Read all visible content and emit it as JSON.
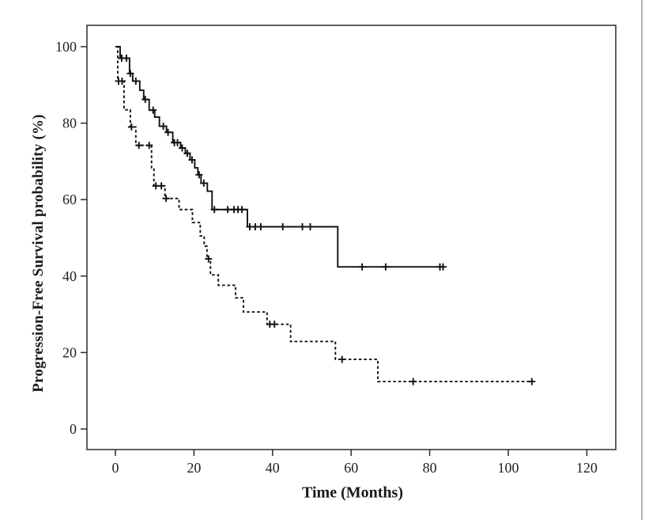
{
  "figure": {
    "background": "#ffffff",
    "line_color": "#111111",
    "axis_color": "#2b2b2b",
    "edge_line_color": "#b3b3b3"
  },
  "chart_data": {
    "type": "line",
    "subtype": "kaplan-meier-step",
    "title": "",
    "xlabel": "Time (Months)",
    "ylabel": "Progression-Free Survival probability (%)",
    "xlim": [
      0,
      126
    ],
    "ylim": [
      0,
      105
    ],
    "grid": false,
    "legend": "none",
    "xticks": [
      0,
      20,
      40,
      60,
      80,
      100,
      120
    ],
    "yticks": [
      0,
      20,
      40,
      60,
      80,
      100
    ],
    "series": [
      {
        "name": "upper_group_solid",
        "style": "solid",
        "steps": [
          [
            0,
            100
          ],
          [
            1.2,
            97
          ],
          [
            3.6,
            93
          ],
          [
            4.4,
            91
          ],
          [
            6.2,
            88.6
          ],
          [
            7.2,
            86.2
          ],
          [
            8.6,
            83.4
          ],
          [
            10,
            81.6
          ],
          [
            11.2,
            79.2
          ],
          [
            13,
            77.6
          ],
          [
            14.6,
            74.9
          ],
          [
            16.6,
            73.5
          ],
          [
            17.8,
            72.1
          ],
          [
            19,
            70.4
          ],
          [
            20.2,
            68.3
          ],
          [
            21,
            66.5
          ],
          [
            21.8,
            64.3
          ],
          [
            23.4,
            62.2
          ],
          [
            24.6,
            57.4
          ],
          [
            33.6,
            52.9
          ],
          [
            56.6,
            42.4
          ]
        ],
        "end_time": 83.6,
        "censors": [
          [
            1.6,
            97
          ],
          [
            2.8,
            97
          ],
          [
            3.8,
            93
          ],
          [
            5.2,
            91
          ],
          [
            7.6,
            86.2
          ],
          [
            9.6,
            83.4
          ],
          [
            12.2,
            79.2
          ],
          [
            13.4,
            77.6
          ],
          [
            15,
            74.9
          ],
          [
            15.8,
            74.9
          ],
          [
            17,
            73.5
          ],
          [
            18.3,
            72.1
          ],
          [
            19.5,
            70.4
          ],
          [
            21.3,
            66.5
          ],
          [
            22.5,
            64.3
          ],
          [
            25.2,
            57.4
          ],
          [
            28.6,
            57.4
          ],
          [
            30.2,
            57.4
          ],
          [
            31.2,
            57.4
          ],
          [
            32.2,
            57.4
          ],
          [
            34.2,
            52.9
          ],
          [
            35.6,
            52.9
          ],
          [
            37,
            52.9
          ],
          [
            42.6,
            52.9
          ],
          [
            47.6,
            52.9
          ],
          [
            49.6,
            52.9
          ],
          [
            62.8,
            42.4
          ],
          [
            68.8,
            42.4
          ],
          [
            82.6,
            42.4
          ],
          [
            83.4,
            42.4
          ]
        ]
      },
      {
        "name": "lower_group_dashed",
        "style": "dashed",
        "steps": [
          [
            0.2,
            100
          ],
          [
            0.6,
            91
          ],
          [
            2.2,
            83.5
          ],
          [
            3.8,
            79
          ],
          [
            5.2,
            74.2
          ],
          [
            9.2,
            68
          ],
          [
            9.8,
            63.6
          ],
          [
            12.6,
            60.3
          ],
          [
            16.2,
            57.4
          ],
          [
            19.6,
            54
          ],
          [
            21.6,
            50.5
          ],
          [
            22.6,
            47.8
          ],
          [
            23.3,
            44.5
          ],
          [
            24.2,
            40.3
          ],
          [
            26.2,
            37.6
          ],
          [
            30.6,
            34.3
          ],
          [
            32.6,
            30.6
          ],
          [
            38.6,
            27.4
          ],
          [
            44.6,
            22.9
          ],
          [
            56,
            18.2
          ],
          [
            66.8,
            12.4
          ]
        ],
        "end_time": 106.5,
        "censors": [
          [
            0.8,
            91
          ],
          [
            1.7,
            91
          ],
          [
            4.1,
            79
          ],
          [
            6,
            74.2
          ],
          [
            8.6,
            74.2
          ],
          [
            10.3,
            63.6
          ],
          [
            11.7,
            63.6
          ],
          [
            12.9,
            60.3
          ],
          [
            23.7,
            44.5
          ],
          [
            39.3,
            27.4
          ],
          [
            40.5,
            27.4
          ],
          [
            57.7,
            18.2
          ],
          [
            75.8,
            12.4
          ],
          [
            106,
            12.4
          ]
        ]
      }
    ]
  }
}
